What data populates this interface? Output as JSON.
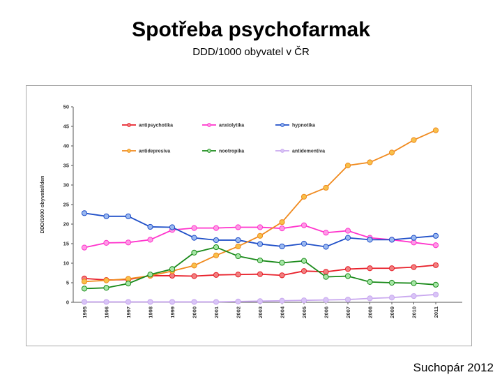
{
  "slide": {
    "title": "Spotřeba psychofarmak",
    "subtitle": "DDD/1000 obyvatel v ČR",
    "credit": "Suchopár 2012"
  },
  "chart_data": {
    "type": "line",
    "ylabel": "DDD/1000 obyvatel/den",
    "ylim": [
      0,
      50
    ],
    "yticks": [
      0,
      5,
      10,
      15,
      20,
      25,
      30,
      35,
      40,
      45,
      50
    ],
    "x": [
      "1995",
      "1996",
      "1997",
      "1998",
      "1999",
      "2000",
      "2001",
      "2002",
      "2003",
      "2004",
      "2005",
      "2006",
      "2007",
      "2008",
      "2009",
      "2010",
      "2011"
    ],
    "legend": "top-inside",
    "grid": false,
    "series": [
      {
        "name": "antipsychotika",
        "color": "#e8202a",
        "fill": "#f08080",
        "values": [
          6.1,
          5.7,
          5.8,
          6.8,
          6.8,
          6.7,
          7.0,
          7.1,
          7.2,
          6.9,
          8.0,
          7.8,
          8.5,
          8.7,
          8.7,
          9.0,
          9.5
        ]
      },
      {
        "name": "anxiolytika",
        "color": "#ff33cc",
        "fill": "#ff99e6",
        "values": [
          14.0,
          15.2,
          15.3,
          16.0,
          18.5,
          19.0,
          19.0,
          19.2,
          19.2,
          18.9,
          19.7,
          17.8,
          18.3,
          16.5,
          16.0,
          15.3,
          14.6
        ]
      },
      {
        "name": "hypnotika",
        "color": "#1f4fc8",
        "fill": "#9bb9f0",
        "values": [
          22.8,
          22.0,
          22.0,
          19.3,
          19.2,
          16.5,
          15.9,
          15.9,
          14.9,
          14.3,
          15.0,
          14.2,
          16.5,
          16.0,
          16.0,
          16.5,
          17.0
        ]
      },
      {
        "name": "antidepresiva",
        "color": "#f08a1e",
        "fill": "#f8c04a",
        "values": [
          5.3,
          5.6,
          6.0,
          6.8,
          8.0,
          9.4,
          12.0,
          14.3,
          17.0,
          20.5,
          27.0,
          29.3,
          35.0,
          35.8,
          38.3,
          41.5,
          44.0
        ]
      },
      {
        "name": "nootropika",
        "color": "#1a8a1a",
        "fill": "#a6e6a6",
        "values": [
          3.5,
          3.7,
          4.8,
          7.1,
          8.5,
          12.7,
          14.1,
          11.8,
          10.7,
          10.1,
          10.6,
          6.5,
          6.7,
          5.2,
          5.0,
          4.9,
          4.5
        ]
      },
      {
        "name": "antidementiva",
        "color": "#c9a8ef",
        "fill": "#d8c4f6",
        "values": [
          0.1,
          0.1,
          0.1,
          0.1,
          0.1,
          0.1,
          0.1,
          0.2,
          0.3,
          0.4,
          0.5,
          0.6,
          0.7,
          1.0,
          1.2,
          1.6,
          2.0
        ]
      }
    ]
  }
}
